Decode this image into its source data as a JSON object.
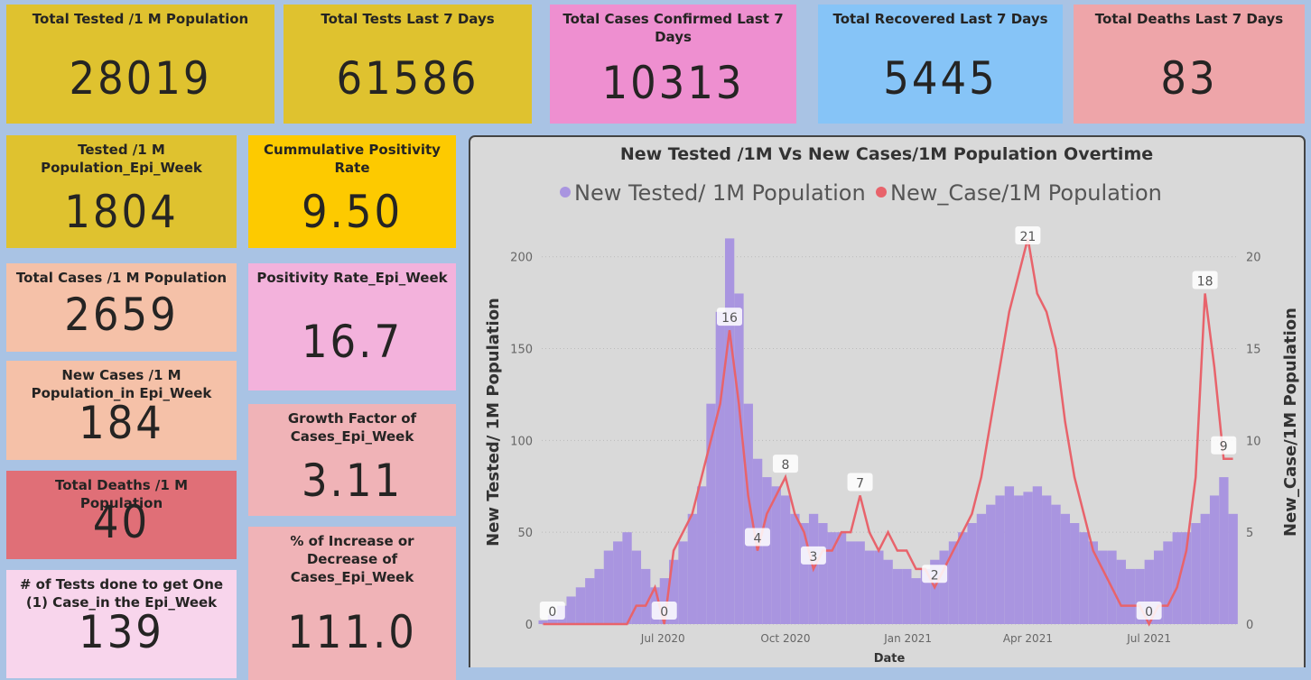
{
  "cards": [
    {
      "label": "Total Tested /1 M Population",
      "value": "28019",
      "color": "#dfc22f"
    },
    {
      "label": "Total Tests Last 7 Days",
      "value": "61586",
      "color": "#dfc22f"
    },
    {
      "label": "Total Cases Confirmed Last 7 Days",
      "value": "10313",
      "color": "#ee8fd0"
    },
    {
      "label": "Total Recovered Last 7 Days",
      "value": "5445",
      "color": "#86c4f7"
    },
    {
      "label": "Total Deaths Last 7 Days",
      "value": "83",
      "color": "#eea5a9"
    },
    {
      "label": "Tested /1 M Population_Epi_Week",
      "value": "1804",
      "color": "#dfc22f"
    },
    {
      "label": "Total Cases /1 M Population",
      "value": "2659",
      "color": "#f5c1a8"
    },
    {
      "label": "New Cases /1 M Population_in Epi_Week",
      "value": "184",
      "color": "#f5c1a8"
    },
    {
      "label": "Total Deaths /1 M Population",
      "value": "40",
      "color": "#e06f77"
    },
    {
      "label": "# of Tests done to get One (1) Case_in the Epi_Week",
      "value": "139",
      "color": "#f8d5ec"
    },
    {
      "label": "Cummulative Positivity Rate",
      "value": "9.50",
      "color": "#fdca00"
    },
    {
      "label": "Positivity Rate_Epi_Week",
      "value": "16.7",
      "color": "#f3b2dc"
    },
    {
      "label": "Growth Factor of Cases_Epi_Week",
      "value": "3.11",
      "color": "#f0b3b7"
    },
    {
      "label": "% of Increase or Decrease of Cases_Epi_Week",
      "value": "111.0",
      "color": "#f0b3b7"
    }
  ],
  "chart_data": {
    "type": "bar-line",
    "title": "New Tested /1M Vs New Cases/1M Population Overtime",
    "x_label": "Date",
    "y_label": "New Tested/ 1M Population",
    "y2_label": "New_Case/1M Population",
    "x": [
      "2020-04-02",
      "2020-04-09",
      "2020-04-16",
      "2020-04-23",
      "2020-04-30",
      "2020-05-07",
      "2020-05-14",
      "2020-05-21",
      "2020-05-28",
      "2020-06-04",
      "2020-06-11",
      "2020-06-18",
      "2020-06-25",
      "2020-07-02",
      "2020-07-09",
      "2020-07-16",
      "2020-07-23",
      "2020-07-30",
      "2020-08-06",
      "2020-08-13",
      "2020-08-20",
      "2020-08-27",
      "2020-09-03",
      "2020-09-10",
      "2020-09-17",
      "2020-09-24",
      "2020-10-01",
      "2020-10-08",
      "2020-10-15",
      "2020-10-22",
      "2020-10-29",
      "2020-11-05",
      "2020-11-12",
      "2020-11-19",
      "2020-11-26",
      "2020-12-03",
      "2020-12-10",
      "2020-12-17",
      "2020-12-24",
      "2020-12-31",
      "2021-01-07",
      "2021-01-14",
      "2021-01-21",
      "2021-01-28",
      "2021-02-04",
      "2021-02-11",
      "2021-02-18",
      "2021-02-25",
      "2021-03-04",
      "2021-03-11",
      "2021-03-18",
      "2021-03-25",
      "2021-04-01",
      "2021-04-08",
      "2021-04-15",
      "2021-04-22",
      "2021-04-29",
      "2021-05-06",
      "2021-05-13",
      "2021-05-20",
      "2021-05-27",
      "2021-06-03",
      "2021-06-10",
      "2021-06-17",
      "2021-06-24",
      "2021-07-01",
      "2021-07-08",
      "2021-07-15",
      "2021-07-22",
      "2021-07-29",
      "2021-08-05",
      "2021-08-12",
      "2021-08-19",
      "2021-08-26",
      "2021-09-02"
    ],
    "series": [
      {
        "name": "New Tested/ 1M Population",
        "color": "#a995e0",
        "kind": "bar",
        "values": [
          2,
          5,
          10,
          15,
          20,
          25,
          30,
          40,
          45,
          50,
          40,
          30,
          20,
          25,
          35,
          45,
          60,
          75,
          120,
          170,
          210,
          180,
          120,
          90,
          80,
          75,
          70,
          60,
          55,
          60,
          55,
          50,
          50,
          45,
          45,
          40,
          40,
          35,
          30,
          30,
          25,
          30,
          35,
          40,
          45,
          50,
          55,
          60,
          65,
          70,
          75,
          70,
          72,
          75,
          70,
          65,
          60,
          55,
          50,
          45,
          40,
          40,
          35,
          30,
          30,
          35,
          40,
          45,
          50,
          50,
          55,
          60,
          70,
          80,
          60
        ]
      },
      {
        "name": "New_Case/1M Population",
        "color": "#e8636b",
        "kind": "line",
        "axis": "y2",
        "values": [
          0,
          0,
          0,
          0,
          0,
          0,
          0,
          0,
          0,
          0,
          1,
          1,
          2,
          0,
          4,
          5,
          6,
          8,
          10,
          12,
          16,
          12,
          7,
          4,
          6,
          7,
          8,
          6,
          5,
          3,
          4,
          4,
          5,
          5,
          7,
          5,
          4,
          5,
          4,
          4,
          3,
          3,
          2,
          3,
          4,
          5,
          6,
          8,
          11,
          14,
          17,
          19,
          21,
          18,
          17,
          15,
          11,
          8,
          6,
          4,
          3,
          2,
          1,
          1,
          1,
          0,
          1,
          1,
          2,
          4,
          8,
          18,
          14,
          9,
          9
        ],
        "value_labels": [
          null,
          "0",
          null,
          null,
          null,
          null,
          null,
          null,
          null,
          null,
          null,
          null,
          null,
          "0",
          null,
          null,
          null,
          null,
          null,
          null,
          "16",
          null,
          null,
          "4",
          null,
          null,
          "8",
          null,
          null,
          "3",
          null,
          null,
          null,
          null,
          "7",
          null,
          null,
          null,
          null,
          null,
          null,
          null,
          "2",
          null,
          null,
          null,
          null,
          null,
          null,
          null,
          null,
          null,
          "21",
          null,
          null,
          null,
          null,
          null,
          null,
          null,
          null,
          null,
          null,
          null,
          null,
          "0",
          null,
          null,
          null,
          null,
          null,
          "18",
          null,
          "9",
          null
        ]
      }
    ],
    "xlim": [
      "2020-04-01",
      "2021-09-05"
    ],
    "xticks": [
      {
        "value": "2020-07-01",
        "label": "Jul 2020"
      },
      {
        "value": "2020-10-01",
        "label": "Oct 2020"
      },
      {
        "value": "2021-01-01",
        "label": "Jan 2021"
      },
      {
        "value": "2021-04-01",
        "label": "Apr 2021"
      },
      {
        "value": "2021-07-01",
        "label": "Jul 2021"
      }
    ],
    "ylim": [
      0,
      220
    ],
    "yticks": [
      0,
      50,
      100,
      150,
      200
    ],
    "y2lim": [
      0,
      22
    ],
    "y2ticks": [
      0,
      5,
      10,
      15,
      20
    ],
    "grid": true,
    "legend": "top"
  }
}
